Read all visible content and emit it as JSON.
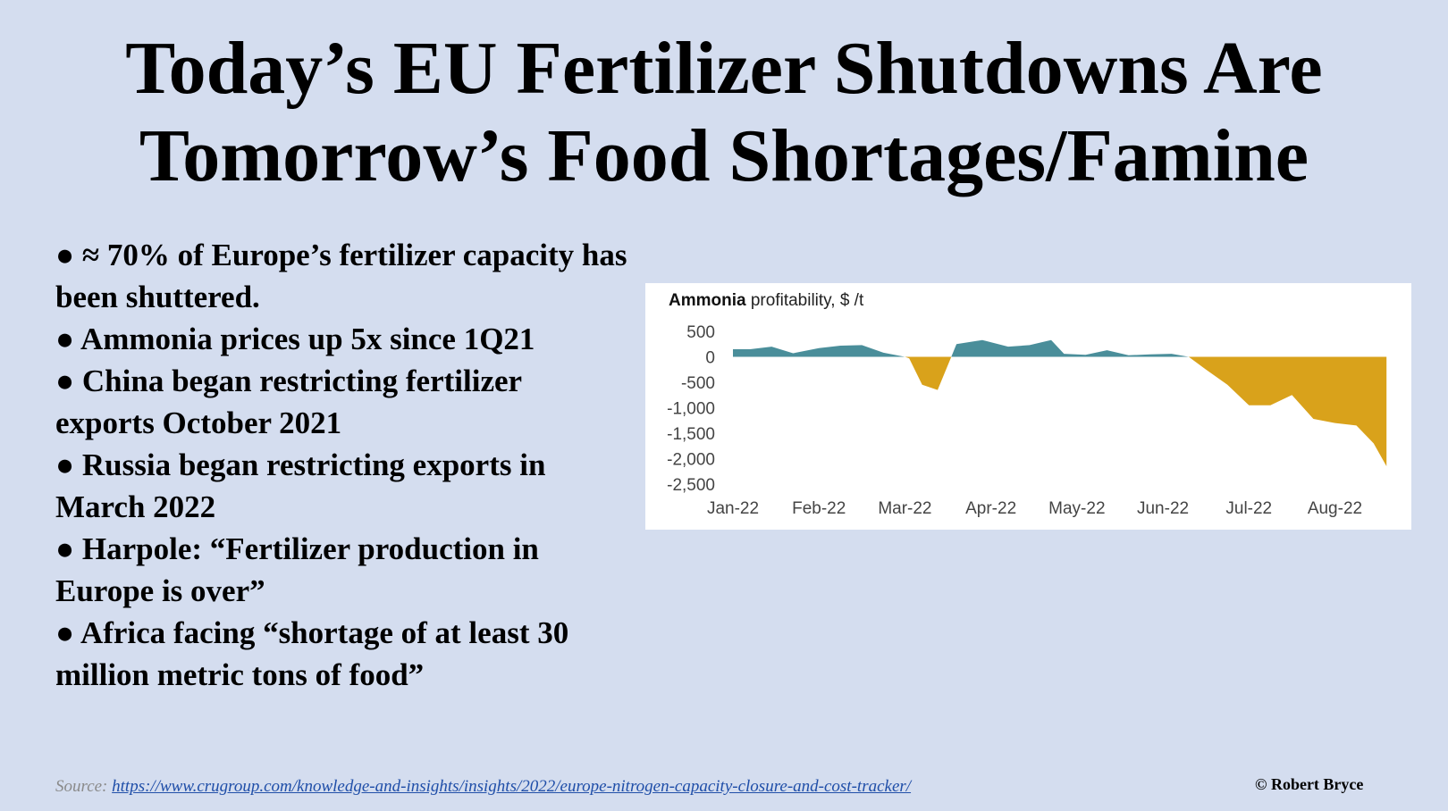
{
  "slide": {
    "title_line1": "Today’s EU Fertilizer Shutdowns Are",
    "title_line2": "Tomorrow’s Food Shortages/Famine",
    "bullets": [
      "●  ≈ 70% of Europe’s fertilizer capacity has been shuttered.",
      "● Ammonia prices up 5x since 1Q21",
      "● China began restricting fertilizer exports October 2021",
      "● Russia began restricting exports in March 2022",
      "● Harpole: “Fertilizer production in Europe is over”",
      "● Africa facing “shortage of at least 30 million metric tons of food”"
    ],
    "source_label": "Source:",
    "source_url": "https://www.crugroup.com/knowledge-and-insights/insights/2022/europe-nitrogen-capacity-closure-and-cost-tracker/",
    "copyright": "© Robert Bryce"
  },
  "chart_data": {
    "type": "area",
    "title_bold": "Ammonia",
    "title_rest": " profitability, $ /t",
    "x_tick_labels": [
      "Jan-22",
      "Feb-22",
      "Mar-22",
      "Apr-22",
      "May-22",
      "Jun-22",
      "Jul-22",
      "Aug-22"
    ],
    "y_tick_labels": [
      "500",
      "0",
      "-500",
      "-1,000",
      "-1,500",
      "-2,000",
      "-2,500"
    ],
    "y_ticks": [
      500,
      0,
      -500,
      -1000,
      -1500,
      -2000,
      -2500
    ],
    "ylim": [
      -2500,
      500
    ],
    "x_month_index_range": [
      0,
      7.65
    ],
    "series": [
      {
        "x": [
          0,
          0.2,
          0.45,
          0.7,
          1.0,
          1.25,
          1.5,
          1.75,
          2.0,
          2.05,
          2.2,
          2.38,
          2.6,
          2.9,
          3.2,
          3.45,
          3.7,
          3.85,
          4.1,
          4.35,
          4.6,
          4.85,
          5.1,
          5.3,
          5.5,
          5.75,
          6.0,
          6.25,
          6.5,
          6.75,
          7.0,
          7.25,
          7.45,
          7.6
        ],
        "y": [
          150,
          150,
          200,
          70,
          170,
          220,
          230,
          80,
          0,
          -30,
          -550,
          -650,
          250,
          330,
          200,
          230,
          330,
          60,
          40,
          130,
          30,
          50,
          60,
          0,
          -250,
          -550,
          -950,
          -950,
          -750,
          -1220,
          -1300,
          -1350,
          -1700,
          -2150
        ]
      }
    ],
    "positive_color": "#4a8e9a",
    "negative_color": "#d9a21b",
    "grid": false,
    "legend": "none"
  }
}
